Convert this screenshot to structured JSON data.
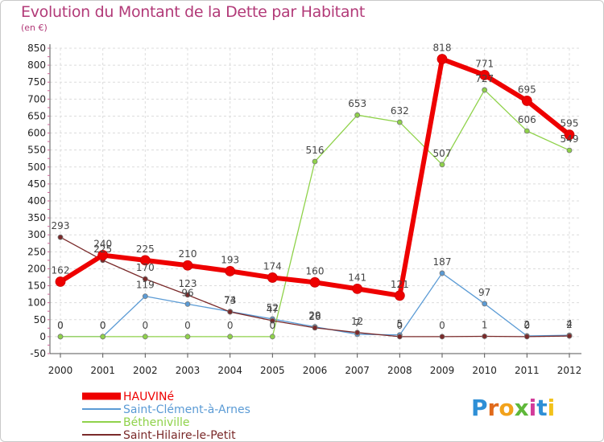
{
  "title": "Evolution du Montant de la Dette par Habitant",
  "subtitle": "(en €)",
  "logo": {
    "letters": [
      "P",
      "r",
      "o",
      "x",
      "i",
      "t",
      "i"
    ],
    "colors": [
      "#2e8fd6",
      "#e06a1b",
      "#f2a21b",
      "#5fb83a",
      "#d23b9a",
      "#2e8fd6",
      "#f2c21b"
    ]
  },
  "chart_data": {
    "type": "line",
    "x": [
      "2000",
      "2001",
      "2002",
      "2003",
      "2004",
      "2005",
      "2006",
      "2007",
      "2008",
      "2009",
      "2010",
      "2011",
      "2012"
    ],
    "ylim": [
      -50,
      850
    ],
    "yticks": [
      -50,
      0,
      50,
      100,
      150,
      200,
      250,
      300,
      350,
      400,
      450,
      500,
      550,
      600,
      650,
      700,
      750,
      800,
      850
    ],
    "grid": true,
    "legend_position": "bottom-left",
    "series": [
      {
        "name": "Saint-Clément-à-Arnes",
        "color": "#5b9bd5",
        "width": 1.3,
        "values": [
          0,
          0,
          119,
          96,
          74,
          52,
          29,
          7,
          5,
          187,
          97,
          2,
          4
        ],
        "labels": [
          "0",
          "0",
          "119",
          "96",
          "74",
          "52",
          "29",
          "7",
          "5",
          "187",
          "97",
          "2",
          "4"
        ]
      },
      {
        "name": "Bétheniville",
        "color": "#8fd24a",
        "width": 1.3,
        "values": [
          0,
          0,
          0,
          0,
          0,
          0,
          516,
          653,
          632,
          507,
          727,
          606,
          549
        ],
        "labels": [
          "0",
          "0",
          "0",
          "0",
          "0",
          "0",
          "516",
          "653",
          "632",
          "507",
          "727",
          "606",
          "549"
        ]
      },
      {
        "name": "Saint-Hilaire-le-Petit",
        "color": "#7a2a2a",
        "width": 1.3,
        "values": [
          293,
          225,
          170,
          123,
          73,
          47,
          26,
          12,
          0,
          0,
          1,
          0,
          2
        ],
        "labels": [
          "293",
          "225",
          "170",
          "123",
          "73",
          "47",
          "26",
          "12",
          "0",
          "0",
          "1",
          "0",
          "2"
        ]
      },
      {
        "name": "HAUVINé",
        "color": "#ee0000",
        "width": 6,
        "values": [
          162,
          240,
          225,
          210,
          193,
          174,
          160,
          141,
          121,
          818,
          771,
          695,
          595
        ],
        "labels": [
          "162",
          "240",
          "225",
          "210",
          "193",
          "174",
          "160",
          "141",
          "121",
          "818",
          "771",
          "695",
          "595"
        ]
      }
    ],
    "legend_order": [
      "HAUVINé",
      "Saint-Clément-à-Arnes",
      "Bétheniville",
      "Saint-Hilaire-le-Petit"
    ]
  }
}
